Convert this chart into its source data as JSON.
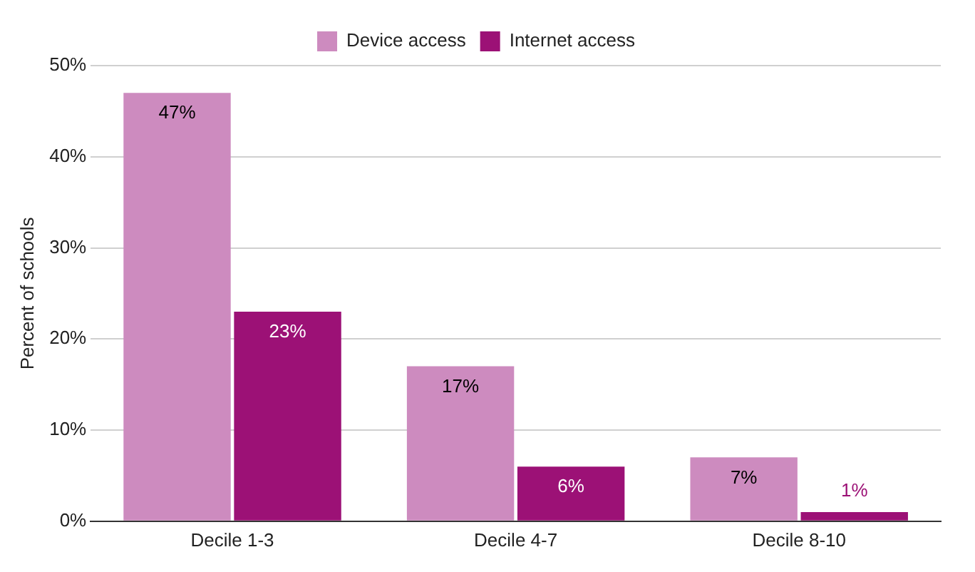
{
  "chart_data": {
    "type": "bar",
    "categories": [
      "Decile 1-3",
      "Decile 4-7",
      "Decile 8-10"
    ],
    "series": [
      {
        "name": "Device access",
        "color": "#cd8bbf",
        "values": [
          47,
          17,
          7
        ],
        "value_labels": [
          "47%",
          "17%",
          "7%"
        ]
      },
      {
        "name": "Internet access",
        "color": "#9c1176",
        "values": [
          23,
          6,
          1
        ],
        "value_labels": [
          "23%",
          "6%",
          "1%"
        ]
      }
    ],
    "ylabel": "Percent of schools",
    "ylim": [
      0,
      50
    ],
    "yticks": [
      {
        "value": 0,
        "label": "0%"
      },
      {
        "value": 10,
        "label": "10%"
      },
      {
        "value": 20,
        "label": "20%"
      },
      {
        "value": 30,
        "label": "30%"
      },
      {
        "value": 40,
        "label": "40%"
      },
      {
        "value": 50,
        "label": "50%"
      }
    ],
    "grid": "y",
    "legend": "top"
  }
}
